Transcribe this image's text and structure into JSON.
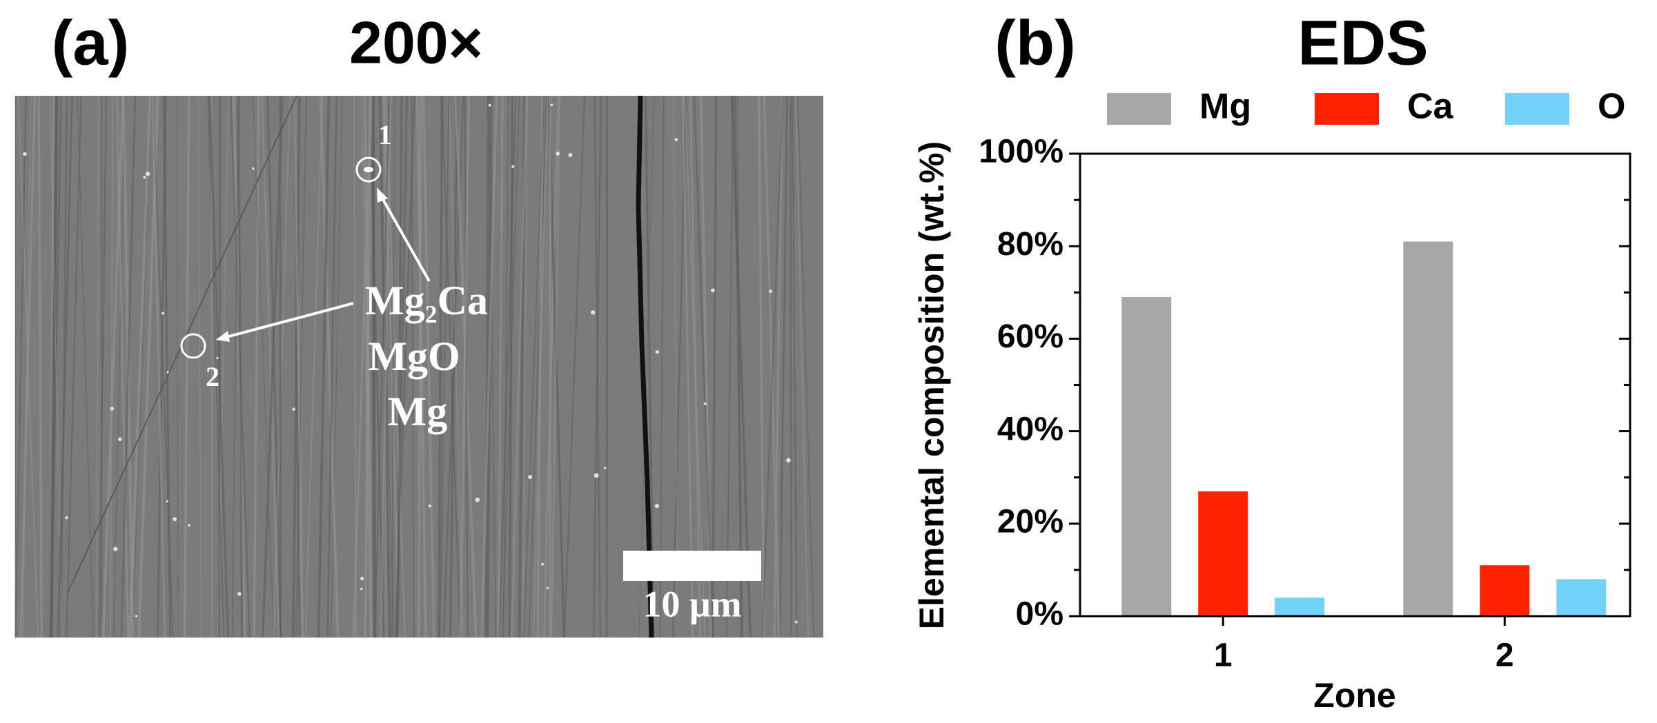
{
  "panel_a": {
    "label": "(a)",
    "title": "200×",
    "points": [
      "1",
      "2"
    ],
    "phases": [
      "Mg₂Ca",
      "MgO",
      "Mg"
    ],
    "scale_bar": "10 μm"
  },
  "chart_data": {
    "type": "bar",
    "label": "(b)",
    "title": "EDS",
    "x_label": "Zone",
    "y_label": "Elemental composition (wt.%)",
    "categories": [
      "1",
      "2"
    ],
    "series": [
      {
        "name": "Mg",
        "color": "#a6a6a6",
        "values": [
          69,
          81
        ]
      },
      {
        "name": "Ca",
        "color": "#ff2200",
        "values": [
          27,
          11
        ]
      },
      {
        "name": "O",
        "color": "#72d2fa",
        "values": [
          4,
          8
        ]
      }
    ],
    "ylim": [
      0,
      100
    ],
    "yticks": [
      {
        "value": 0,
        "label": "0%"
      },
      {
        "value": 20,
        "label": "20%"
      },
      {
        "value": 40,
        "label": "40%"
      },
      {
        "value": 60,
        "label": "60%"
      },
      {
        "value": 80,
        "label": "80%"
      },
      {
        "value": 100,
        "label": "100%"
      }
    ],
    "yminorticks": [
      10,
      30,
      50,
      70,
      90
    ]
  }
}
